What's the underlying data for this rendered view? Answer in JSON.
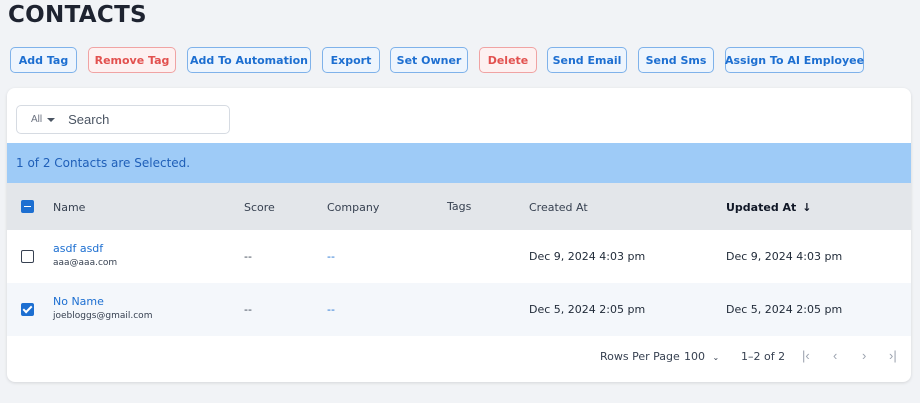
{
  "page": {
    "title": "CONTACTS"
  },
  "toolbar": {
    "add_tag": "Add Tag",
    "remove_tag": "Remove Tag",
    "add_to_automation": "Add To Automation",
    "export": "Export",
    "set_owner": "Set Owner",
    "delete": "Delete",
    "send_email": "Send Email",
    "send_sms": "Send Sms",
    "assign_ai": "Assign To AI Employee"
  },
  "search": {
    "filter": "All",
    "placeholder": "Search"
  },
  "selection": {
    "text": "1 of 2 Contacts are Selected."
  },
  "table": {
    "headers": {
      "name": "Name",
      "score": "Score",
      "company": "Company",
      "tags": "Tags",
      "created": "Created At",
      "updated": "Updated At"
    },
    "rows": [
      {
        "name": "asdf asdf",
        "email": "aaa@aaa.com",
        "score": "--",
        "company": "--",
        "tags": "",
        "created": "Dec 9, 2024 4:03 pm",
        "updated": "Dec 9, 2024 4:03 pm",
        "selected": false
      },
      {
        "name": "No Name",
        "email": "joebloggs@gmail.com",
        "score": "--",
        "company": "--",
        "tags": "",
        "created": "Dec 5, 2024 2:05 pm",
        "updated": "Dec 5, 2024 2:05 pm",
        "selected": true
      }
    ]
  },
  "pagination": {
    "rows_per_page_label": "Rows Per Page",
    "rows_per_page_value": "100",
    "range": "1–2 of 2",
    "icons": [
      "first-page-icon",
      "prev-page-icon",
      "next-page-icon",
      "last-page-icon"
    ]
  },
  "colors": {
    "accent": "#1d6fd1",
    "danger": "#e2514f",
    "banner": "#9ecbf7",
    "header_bg": "#e3e6ea"
  }
}
